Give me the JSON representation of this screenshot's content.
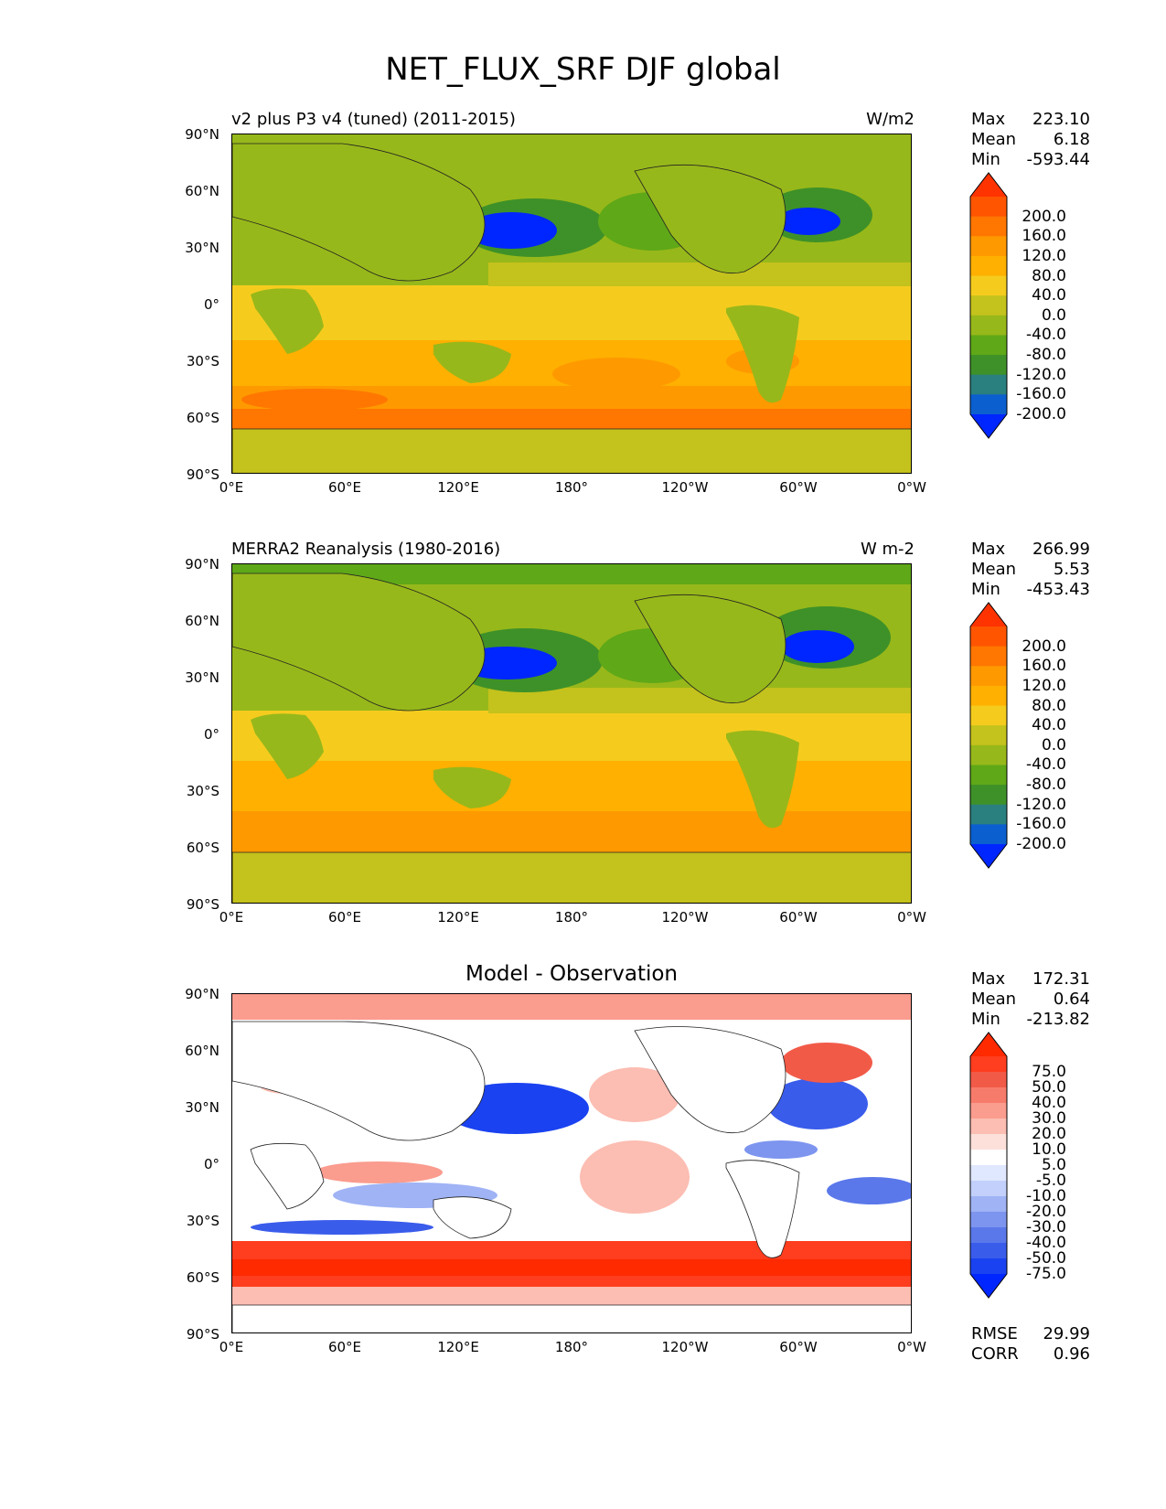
{
  "title": "NET_FLUX_SRF DJF global",
  "x_ticks": [
    "0°E",
    "60°E",
    "120°E",
    "180°",
    "120°W",
    "60°W",
    "0°W"
  ],
  "y_ticks": [
    "90°N",
    "60°N",
    "30°N",
    "0°",
    "30°S",
    "60°S",
    "90°S"
  ],
  "panels": [
    {
      "subtitle_left": "v2 plus P3 v4 (tuned) (2011-2015)",
      "subtitle_right": "W/m2",
      "stats": {
        "max_label": "Max",
        "max": "223.10",
        "mean_label": "Mean",
        "mean": "6.18",
        "min_label": "Min",
        "min": "-593.44"
      },
      "colorbar": {
        "labels": [
          "200.0",
          "160.0",
          "120.0",
          "80.0",
          "40.0",
          "0.0",
          "-40.0",
          "-80.0",
          "-120.0",
          "-160.0",
          "-200.0"
        ],
        "colors": [
          "#ff3300",
          "#ff5500",
          "#ff7700",
          "#ff9900",
          "#ffb000",
          "#f5cc1e",
          "#c4c21c",
          "#97b81a",
          "#5fa818",
          "#3e9128",
          "#2a7f7f",
          "#0b5fcf",
          "#0026ff"
        ]
      }
    },
    {
      "subtitle_left": "MERRA2 Reanalysis (1980-2016)",
      "subtitle_right": "W m-2",
      "stats": {
        "max_label": "Max",
        "max": "266.99",
        "mean_label": "Mean",
        "mean": "5.53",
        "min_label": "Min",
        "min": "-453.43"
      },
      "colorbar": {
        "labels": [
          "200.0",
          "160.0",
          "120.0",
          "80.0",
          "40.0",
          "0.0",
          "-40.0",
          "-80.0",
          "-120.0",
          "-160.0",
          "-200.0"
        ],
        "colors": [
          "#ff3300",
          "#ff5500",
          "#ff7700",
          "#ff9900",
          "#ffb000",
          "#f5cc1e",
          "#c4c21c",
          "#97b81a",
          "#5fa818",
          "#3e9128",
          "#2a7f7f",
          "#0b5fcf",
          "#0026ff"
        ]
      }
    },
    {
      "subtitle_center": "Model - Observation",
      "stats": {
        "max_label": "Max",
        "max": "172.31",
        "mean_label": "Mean",
        "mean": "0.64",
        "min_label": "Min",
        "min": "-213.82"
      },
      "colorbar": {
        "labels": [
          "75.0",
          "50.0",
          "40.0",
          "30.0",
          "20.0",
          "10.0",
          "5.0",
          "-5.0",
          "-10.0",
          "-20.0",
          "-30.0",
          "-40.0",
          "-50.0",
          "-75.0"
        ],
        "colors": [
          "#ff2a00",
          "#ff3d1f",
          "#f25a48",
          "#f77b6b",
          "#fa9c8e",
          "#fcbdb2",
          "#fde0da",
          "#ffffff",
          "#e0e8ff",
          "#c2d0fb",
          "#9fb3f5",
          "#7d95ef",
          "#5a78ea",
          "#3a5ceb",
          "#1a42f0",
          "#0026ff"
        ]
      },
      "metrics": {
        "rmse_label": "RMSE",
        "rmse": "29.99",
        "corr_label": "CORR",
        "corr": "0.96"
      }
    }
  ]
}
